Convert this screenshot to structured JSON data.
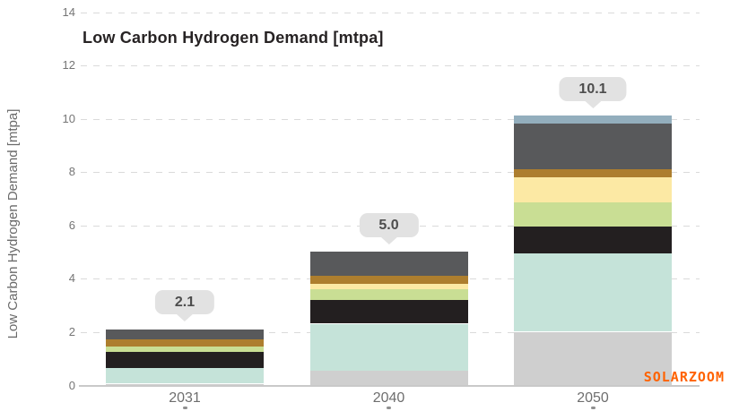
{
  "title": "Low Carbon Hydrogen Demand [mtpa]",
  "watermark": "SOLARZOOM",
  "chart_data": {
    "type": "bar",
    "stacked": true,
    "title": "Low Carbon Hydrogen Demand [mtpa]",
    "ylabel": "Low Carbon Hydrogen Demand [mtpa]",
    "xlabel": "",
    "categories": [
      "2031",
      "2040",
      "2050"
    ],
    "totals_labels": [
      "2.1",
      "5.0",
      "10.1"
    ],
    "ylim": [
      0,
      14
    ],
    "ytick_step": 2,
    "grid": "horizontal-dashed",
    "legend": "none",
    "series": [
      {
        "name": "segment-light-gray",
        "color": "#cfcfcf",
        "values": [
          0.05,
          0.55,
          2.0
        ]
      },
      {
        "name": "segment-mint",
        "color": "#c5e3d9",
        "values": [
          0.6,
          1.75,
          2.95
        ]
      },
      {
        "name": "segment-black",
        "color": "#231f20",
        "values": [
          0.6,
          0.9,
          1.0
        ]
      },
      {
        "name": "segment-light-green",
        "color": "#c9de94",
        "values": [
          0.2,
          0.4,
          0.9
        ]
      },
      {
        "name": "segment-pale-yellow",
        "color": "#fce9a4",
        "values": [
          0.0,
          0.2,
          0.95
        ]
      },
      {
        "name": "segment-ochre",
        "color": "#ad7e2e",
        "values": [
          0.25,
          0.3,
          0.3
        ]
      },
      {
        "name": "segment-dark-gray",
        "color": "#58595b",
        "values": [
          0.4,
          0.9,
          1.7
        ]
      },
      {
        "name": "segment-steel-blue",
        "color": "#93aebd",
        "values": [
          0.0,
          0.0,
          0.3
        ]
      }
    ]
  },
  "colors": {
    "grid": "#dadada",
    "baseline": "#c9c9c9",
    "bubble_bg": "#e2e2e2",
    "bubble_text": "#4d4d4d",
    "axis_text": "#757575",
    "x_label_text": "#6e6e6e",
    "title_text": "#272324",
    "watermark": "#ff6200"
  }
}
